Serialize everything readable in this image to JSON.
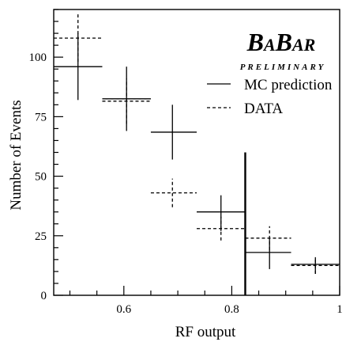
{
  "chart_data": {
    "type": "scatter",
    "title": "",
    "xlabel": "RF output",
    "ylabel": "Number of Events",
    "xlim": [
      0.47,
      1.0
    ],
    "ylim": [
      0,
      120
    ],
    "x_ticks": [
      0.6,
      0.8,
      1
    ],
    "x_tick_labels": [
      "0.6",
      "0.8",
      "1"
    ],
    "y_ticks": [
      0,
      25,
      50,
      75,
      100
    ],
    "y_tick_labels": [
      "0",
      "25",
      "50",
      "75",
      "100"
    ],
    "legend_position": "top-right",
    "logo": {
      "main": "BABAR",
      "sub": "PRELIMINARY"
    },
    "series": [
      {
        "name": "MC prediction",
        "style": "solid",
        "points": [
          {
            "x": 0.515,
            "y": 96,
            "xlow": 0.47,
            "xhigh": 0.56,
            "ylow": 82,
            "yhigh": 110
          },
          {
            "x": 0.605,
            "y": 82.5,
            "xlow": 0.56,
            "xhigh": 0.65,
            "ylow": 69,
            "yhigh": 96
          },
          {
            "x": 0.69,
            "y": 68.5,
            "xlow": 0.65,
            "xhigh": 0.735,
            "ylow": 57,
            "yhigh": 80
          },
          {
            "x": 0.78,
            "y": 35,
            "xlow": 0.735,
            "xhigh": 0.825,
            "ylow": 27,
            "yhigh": 42
          },
          {
            "x": 0.87,
            "y": 18,
            "xlow": 0.825,
            "xhigh": 0.91,
            "ylow": 11,
            "yhigh": 24
          },
          {
            "x": 0.955,
            "y": 13,
            "xlow": 0.91,
            "xhigh": 1.0,
            "ylow": 9,
            "yhigh": 16
          }
        ]
      },
      {
        "name": "DATA",
        "style": "dashed",
        "points": [
          {
            "x": 0.515,
            "y": 108,
            "xlow": 0.47,
            "xhigh": 0.56,
            "ylow": 98,
            "yhigh": 118
          },
          {
            "x": 0.605,
            "y": 81.5,
            "xlow": 0.56,
            "xhigh": 0.65,
            "ylow": 72,
            "yhigh": 91
          },
          {
            "x": 0.69,
            "y": 43,
            "xlow": 0.65,
            "xhigh": 0.735,
            "ylow": 37,
            "yhigh": 49
          },
          {
            "x": 0.78,
            "y": 28,
            "xlow": 0.735,
            "xhigh": 0.825,
            "ylow": 23,
            "yhigh": 33
          },
          {
            "x": 0.87,
            "y": 24,
            "xlow": 0.825,
            "xhigh": 0.91,
            "ylow": 19,
            "yhigh": 29
          },
          {
            "x": 0.955,
            "y": 12.5,
            "xlow": 0.91,
            "xhigh": 1.0,
            "ylow": 9,
            "yhigh": 16
          }
        ]
      }
    ],
    "cut_line": {
      "x": 0.825,
      "ymin": 0,
      "ymax": 60
    }
  }
}
